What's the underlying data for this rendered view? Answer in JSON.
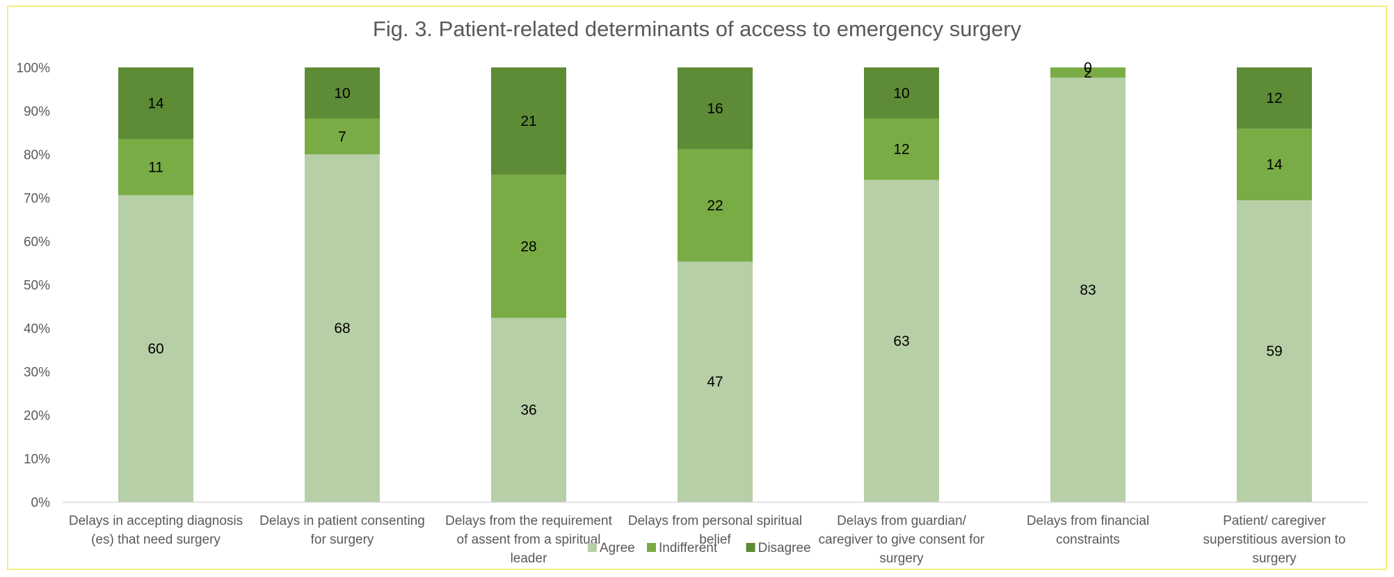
{
  "chart_data": {
    "type": "bar",
    "stacked": "percent",
    "title": "Fig. 3. Patient-related determinants of access to emergency surgery",
    "categories": [
      [
        "Delays in accepting diagnosis",
        "(es) that need surgery"
      ],
      [
        "Delays in patient consenting",
        "for surgery"
      ],
      [
        "Delays from the requirement",
        "of assent from a spiritual",
        "leader"
      ],
      [
        "Delays from personal spiritual",
        "belief"
      ],
      [
        "Delays from guardian/",
        "caregiver to give consent for",
        "surgery"
      ],
      [
        "Delays from financial",
        "constraints"
      ],
      [
        "Patient/ caregiver",
        "superstitious aversion to",
        "surgery"
      ]
    ],
    "series": [
      {
        "name": "Agree",
        "color": "#b7cfa7",
        "values": [
          60,
          68,
          36,
          47,
          63,
          83,
          59
        ]
      },
      {
        "name": "Indifferent",
        "color": "#7aac45",
        "values": [
          11,
          7,
          28,
          22,
          12,
          2,
          14
        ]
      },
      {
        "name": "Disagree",
        "color": "#5e8b36",
        "values": [
          14,
          10,
          21,
          16,
          10,
          0,
          12
        ]
      }
    ],
    "yticks": [
      "0%",
      "10%",
      "20%",
      "30%",
      "40%",
      "50%",
      "60%",
      "70%",
      "80%",
      "90%",
      "100%"
    ],
    "ylim": [
      0,
      100
    ],
    "legend_position": "bottom",
    "grid": false
  }
}
